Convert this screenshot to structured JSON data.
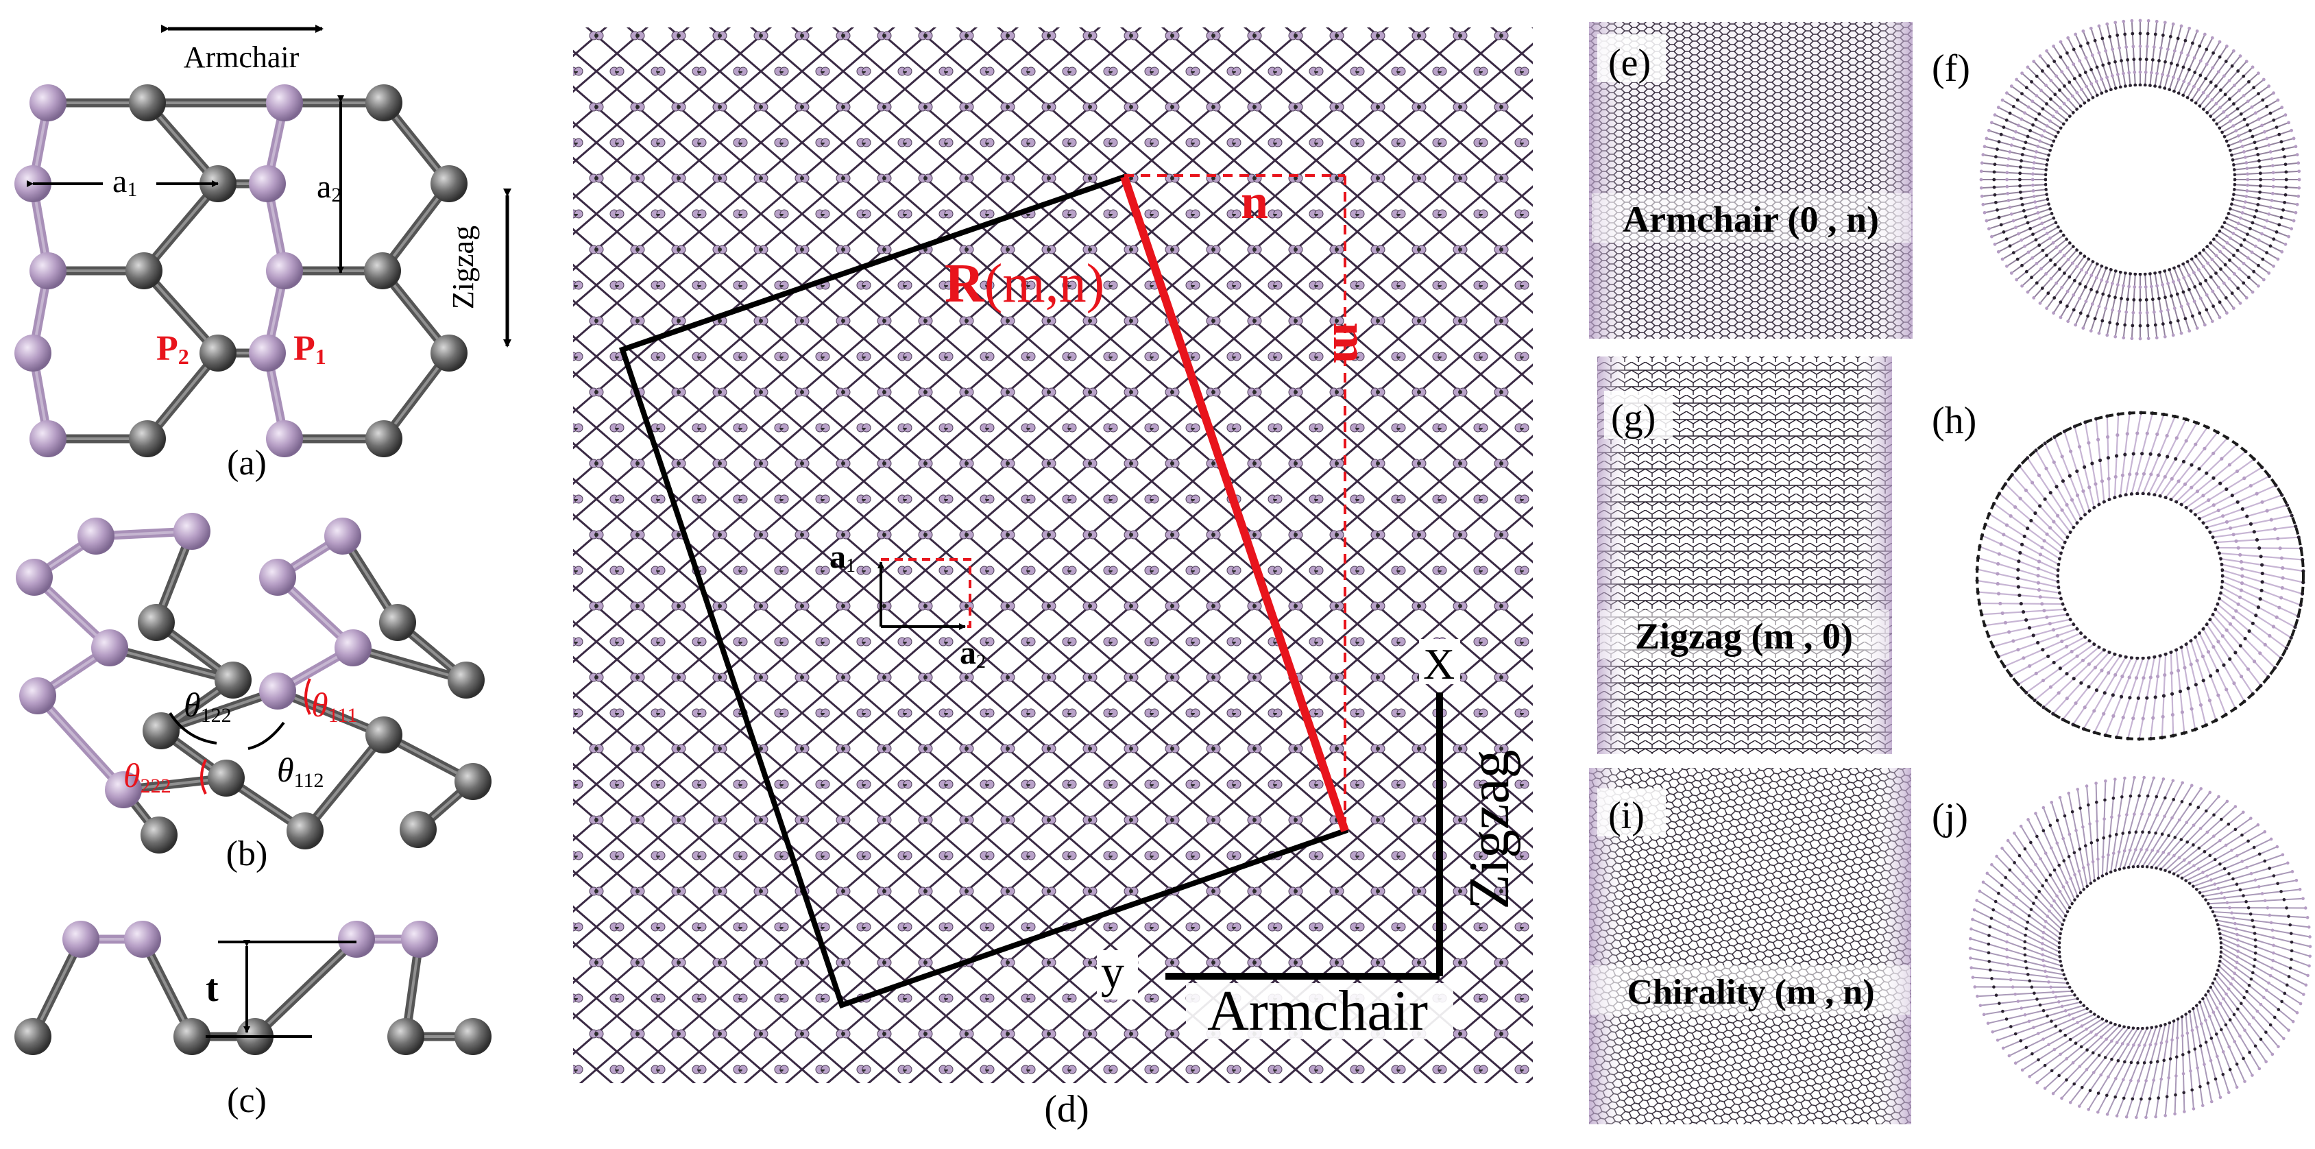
{
  "colors": {
    "atom_light": "#b59dc4",
    "atom_dark": "#6e6e6e",
    "bond_light": "#a890b8",
    "bond_dark": "#555555",
    "lattice_bond": "#3a2a44",
    "lattice_atom": "#b9a2c9",
    "accent_red": "#e8141c"
  },
  "panel_a": {
    "label": "(a)",
    "armchair": "Armchair",
    "zigzag": "Zigzag",
    "a1": "a",
    "a1_sub": "1",
    "a2": "a",
    "a2_sub": "2",
    "p2": "P",
    "p2_sub": "2",
    "p1": "P",
    "p1_sub": "1"
  },
  "panel_b": {
    "label": "(b)",
    "theta122": "θ",
    "theta122_sub": "122",
    "theta111": "θ",
    "theta111_sub": "111",
    "theta222": "θ",
    "theta222_sub": "222",
    "theta112": "θ",
    "theta112_sub": "112"
  },
  "panel_c": {
    "label": "(c)",
    "t": "t"
  },
  "panel_d": {
    "label": "(d)",
    "R": "R",
    "R_args": "(m,n)",
    "n": "n",
    "m": "m",
    "a1": "a",
    "a1_sub": "1",
    "a2": "a",
    "a2_sub": "2",
    "x": "X",
    "y": "y",
    "zigzag": "Zigzag",
    "armchair": "Armchair"
  },
  "panel_e": {
    "label": "(e)",
    "caption": "Armchair (0 , n)"
  },
  "panel_f": {
    "label": "(f)"
  },
  "panel_g": {
    "label": "(g)",
    "caption": "Zigzag (m , 0)"
  },
  "panel_h": {
    "label": "(h)"
  },
  "panel_i": {
    "label": "(i)",
    "caption": "Chirality (m , n)"
  },
  "panel_j": {
    "label": "(j)"
  }
}
